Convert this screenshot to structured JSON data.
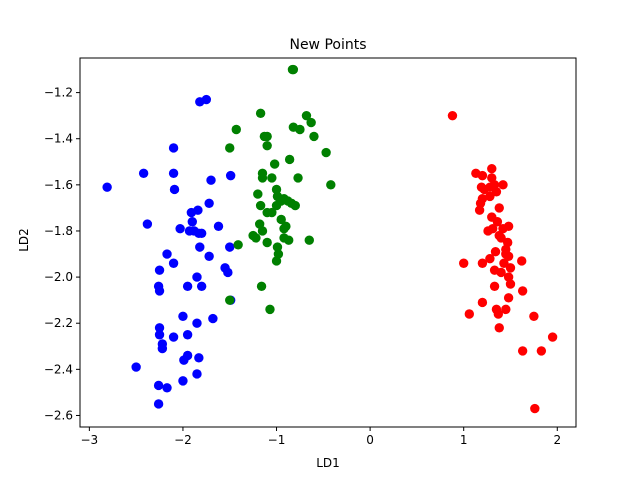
{
  "chart_data": {
    "type": "scatter",
    "title": "New Points",
    "xlabel": "LD1",
    "ylabel": "LD2",
    "xlim": [
      -3.1,
      2.2
    ],
    "ylim": [
      -2.65,
      -1.05
    ],
    "xticks": [
      -3,
      -2,
      -1,
      0,
      1,
      2
    ],
    "yticks": [
      -2.6,
      -2.4,
      -2.2,
      -2.0,
      -1.8,
      -1.6,
      -1.4,
      -1.2
    ],
    "xtick_labels": [
      "−3",
      "−2",
      "−1",
      "0",
      "1",
      "2"
    ],
    "ytick_labels": [
      "−2.6",
      "−2.4",
      "−2.2",
      "−2.0",
      "−1.8",
      "−1.6",
      "−1.4",
      "−1.2"
    ],
    "grid": false,
    "series": [
      {
        "color": "#0000ff",
        "points": [
          [
            -1.75,
            -1.23
          ],
          [
            -1.82,
            -1.24
          ],
          [
            -2.81,
            -1.61
          ],
          [
            -2.42,
            -1.55
          ],
          [
            -2.1,
            -1.44
          ],
          [
            -2.1,
            -1.55
          ],
          [
            -2.09,
            -1.62
          ],
          [
            -1.7,
            -1.58
          ],
          [
            -1.49,
            -1.56
          ],
          [
            -1.72,
            -1.68
          ],
          [
            -1.91,
            -1.72
          ],
          [
            -1.84,
            -1.71
          ],
          [
            -1.9,
            -1.76
          ],
          [
            -2.38,
            -1.77
          ],
          [
            -2.03,
            -1.79
          ],
          [
            -1.93,
            -1.8
          ],
          [
            -1.88,
            -1.8
          ],
          [
            -1.83,
            -1.81
          ],
          [
            -1.8,
            -1.81
          ],
          [
            -1.62,
            -1.78
          ],
          [
            -1.82,
            -1.87
          ],
          [
            -1.5,
            -1.87
          ],
          [
            -1.72,
            -1.91
          ],
          [
            -2.17,
            -1.9
          ],
          [
            -2.1,
            -1.94
          ],
          [
            -2.25,
            -1.97
          ],
          [
            -1.55,
            -1.96
          ],
          [
            -1.52,
            -1.98
          ],
          [
            -1.85,
            -2.0
          ],
          [
            -1.95,
            -2.04
          ],
          [
            -2.26,
            -2.04
          ],
          [
            -2.25,
            -2.06
          ],
          [
            -1.8,
            -2.04
          ],
          [
            -1.49,
            -2.1
          ],
          [
            -2.0,
            -2.17
          ],
          [
            -1.68,
            -2.18
          ],
          [
            -1.85,
            -2.2
          ],
          [
            -2.25,
            -2.22
          ],
          [
            -2.25,
            -2.25
          ],
          [
            -1.95,
            -2.25
          ],
          [
            -2.1,
            -2.26
          ],
          [
            -2.22,
            -2.29
          ],
          [
            -2.22,
            -2.31
          ],
          [
            -1.95,
            -2.34
          ],
          [
            -1.83,
            -2.35
          ],
          [
            -1.99,
            -2.36
          ],
          [
            -2.5,
            -2.39
          ],
          [
            -1.85,
            -2.42
          ],
          [
            -2.0,
            -2.45
          ],
          [
            -2.26,
            -2.47
          ],
          [
            -2.17,
            -2.48
          ],
          [
            -2.26,
            -2.55
          ]
        ]
      },
      {
        "color": "#008000",
        "points": [
          [
            -0.82,
            -1.1
          ],
          [
            -0.83,
            -1.1
          ],
          [
            -1.17,
            -1.29
          ],
          [
            -0.68,
            -1.3
          ],
          [
            -0.63,
            -1.33
          ],
          [
            -1.43,
            -1.36
          ],
          [
            -0.82,
            -1.35
          ],
          [
            -0.75,
            -1.36
          ],
          [
            -0.6,
            -1.39
          ],
          [
            -1.13,
            -1.39
          ],
          [
            -1.1,
            -1.39
          ],
          [
            -1.1,
            -1.43
          ],
          [
            -1.5,
            -1.44
          ],
          [
            -0.47,
            -1.46
          ],
          [
            -0.86,
            -1.49
          ],
          [
            -1.02,
            -1.51
          ],
          [
            -1.15,
            -1.55
          ],
          [
            -1.15,
            -1.57
          ],
          [
            -1.05,
            -1.57
          ],
          [
            -0.77,
            -1.57
          ],
          [
            -0.42,
            -1.6
          ],
          [
            -1.0,
            -1.62
          ],
          [
            -0.99,
            -1.65
          ],
          [
            -1.2,
            -1.64
          ],
          [
            -0.92,
            -1.66
          ],
          [
            -0.95,
            -1.67
          ],
          [
            -0.88,
            -1.67
          ],
          [
            -0.84,
            -1.68
          ],
          [
            -0.8,
            -1.69
          ],
          [
            -1.0,
            -1.69
          ],
          [
            -1.17,
            -1.69
          ],
          [
            -1.1,
            -1.72
          ],
          [
            -1.05,
            -1.72
          ],
          [
            -0.95,
            -1.75
          ],
          [
            -1.18,
            -1.77
          ],
          [
            -0.9,
            -1.78
          ],
          [
            -0.92,
            -1.79
          ],
          [
            -1.15,
            -1.8
          ],
          [
            -1.25,
            -1.82
          ],
          [
            -1.22,
            -1.83
          ],
          [
            -0.92,
            -1.83
          ],
          [
            -0.87,
            -1.84
          ],
          [
            -0.65,
            -1.84
          ],
          [
            -1.1,
            -1.85
          ],
          [
            -1.41,
            -1.86
          ],
          [
            -0.99,
            -1.87
          ],
          [
            -0.98,
            -1.9
          ],
          [
            -1.0,
            -1.93
          ],
          [
            -1.16,
            -2.04
          ],
          [
            -1.5,
            -2.1
          ],
          [
            -1.07,
            -2.14
          ]
        ]
      },
      {
        "color": "#ff0000",
        "points": [
          [
            0.88,
            -1.3
          ],
          [
            1.3,
            -1.53
          ],
          [
            1.13,
            -1.55
          ],
          [
            1.2,
            -1.56
          ],
          [
            1.3,
            -1.57
          ],
          [
            1.33,
            -1.6
          ],
          [
            1.42,
            -1.6
          ],
          [
            1.28,
            -1.61
          ],
          [
            1.19,
            -1.61
          ],
          [
            1.22,
            -1.62
          ],
          [
            1.35,
            -1.63
          ],
          [
            1.28,
            -1.65
          ],
          [
            1.2,
            -1.66
          ],
          [
            1.18,
            -1.68
          ],
          [
            1.17,
            -1.71
          ],
          [
            1.38,
            -1.7
          ],
          [
            1.3,
            -1.74
          ],
          [
            1.36,
            -1.76
          ],
          [
            1.48,
            -1.78
          ],
          [
            1.42,
            -1.79
          ],
          [
            1.31,
            -1.79
          ],
          [
            1.26,
            -1.8
          ],
          [
            1.38,
            -1.82
          ],
          [
            1.4,
            -1.83
          ],
          [
            1.47,
            -1.85
          ],
          [
            1.45,
            -1.88
          ],
          [
            1.34,
            -1.89
          ],
          [
            1.45,
            -1.9
          ],
          [
            1.48,
            -1.91
          ],
          [
            1.28,
            -1.92
          ],
          [
            1.62,
            -1.93
          ],
          [
            1.0,
            -1.94
          ],
          [
            1.2,
            -1.94
          ],
          [
            1.43,
            -1.94
          ],
          [
            1.5,
            -1.96
          ],
          [
            1.33,
            -1.97
          ],
          [
            1.4,
            -1.98
          ],
          [
            1.48,
            -2.0
          ],
          [
            1.5,
            -2.03
          ],
          [
            1.33,
            -2.04
          ],
          [
            1.63,
            -2.06
          ],
          [
            1.48,
            -2.09
          ],
          [
            1.2,
            -2.11
          ],
          [
            1.35,
            -2.14
          ],
          [
            1.45,
            -2.14
          ],
          [
            1.06,
            -2.16
          ],
          [
            1.37,
            -2.16
          ],
          [
            1.75,
            -2.17
          ],
          [
            1.38,
            -2.22
          ],
          [
            1.95,
            -2.26
          ],
          [
            1.63,
            -2.32
          ],
          [
            1.83,
            -2.32
          ],
          [
            1.76,
            -2.57
          ]
        ]
      }
    ]
  }
}
